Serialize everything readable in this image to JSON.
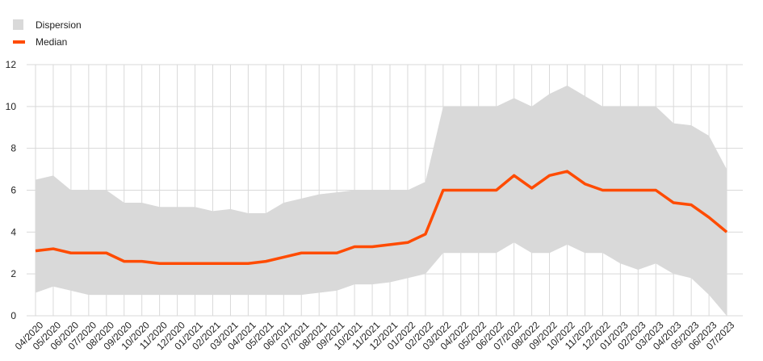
{
  "chart_data": {
    "type": "area",
    "legend": [
      "Dispersion",
      "Median"
    ],
    "legend_position": "top-left",
    "grid": true,
    "ylim": [
      0,
      12
    ],
    "yticks": [
      0,
      2,
      4,
      6,
      8,
      10,
      12
    ],
    "categories": [
      "04/2020",
      "05/2020",
      "06/2020",
      "07/2020",
      "08/2020",
      "09/2020",
      "10/2020",
      "11/2020",
      "12/2020",
      "01/2021",
      "02/2021",
      "03/2021",
      "04/2021",
      "05/2021",
      "06/2021",
      "07/2021",
      "08/2021",
      "09/2021",
      "10/2021",
      "11/2021",
      "12/2021",
      "01/2022",
      "02/2022",
      "03/2022",
      "04/2022",
      "05/2022",
      "06/2022",
      "07/2022",
      "08/2022",
      "09/2022",
      "10/2022",
      "11/2022",
      "12/2022",
      "01/2023",
      "02/2023",
      "03/2023",
      "04/2023",
      "05/2023",
      "06/2023",
      "07/2023"
    ],
    "series": [
      {
        "name": "Dispersion",
        "type": "band",
        "lower": [
          1.1,
          1.4,
          1.2,
          1.0,
          1.0,
          1.0,
          1.0,
          1.0,
          1.0,
          1.0,
          1.0,
          1.0,
          1.0,
          1.0,
          1.0,
          1.0,
          1.1,
          1.2,
          1.5,
          1.5,
          1.6,
          1.8,
          2.0,
          3.0,
          3.0,
          3.0,
          3.0,
          3.5,
          3.0,
          3.0,
          3.4,
          3.0,
          3.0,
          2.5,
          2.2,
          2.5,
          2.0,
          1.8,
          1.0,
          0.0
        ],
        "upper": [
          6.5,
          6.7,
          6.0,
          6.0,
          6.0,
          5.4,
          5.4,
          5.2,
          5.2,
          5.2,
          5.0,
          5.1,
          4.9,
          4.9,
          5.4,
          5.6,
          5.8,
          5.9,
          6.0,
          6.0,
          6.0,
          6.0,
          6.4,
          10.0,
          10.0,
          10.0,
          10.0,
          10.4,
          10.0,
          10.6,
          11.0,
          10.5,
          10.0,
          10.0,
          10.0,
          10.0,
          9.2,
          9.1,
          8.6,
          7.0
        ]
      },
      {
        "name": "Median",
        "type": "line",
        "values": [
          3.1,
          3.2,
          3.0,
          3.0,
          3.0,
          2.6,
          2.6,
          2.5,
          2.5,
          2.5,
          2.5,
          2.5,
          2.5,
          2.6,
          2.8,
          3.0,
          3.0,
          3.0,
          3.3,
          3.3,
          3.4,
          3.5,
          3.9,
          6.0,
          6.0,
          6.0,
          6.0,
          6.7,
          6.1,
          6.7,
          6.9,
          6.3,
          6.0,
          6.0,
          6.0,
          6.0,
          5.4,
          5.3,
          4.7,
          4.0
        ]
      }
    ],
    "colors": {
      "band": "#d9d9d9",
      "line": "#ff4b00",
      "grid": "#d9d9d9"
    }
  }
}
